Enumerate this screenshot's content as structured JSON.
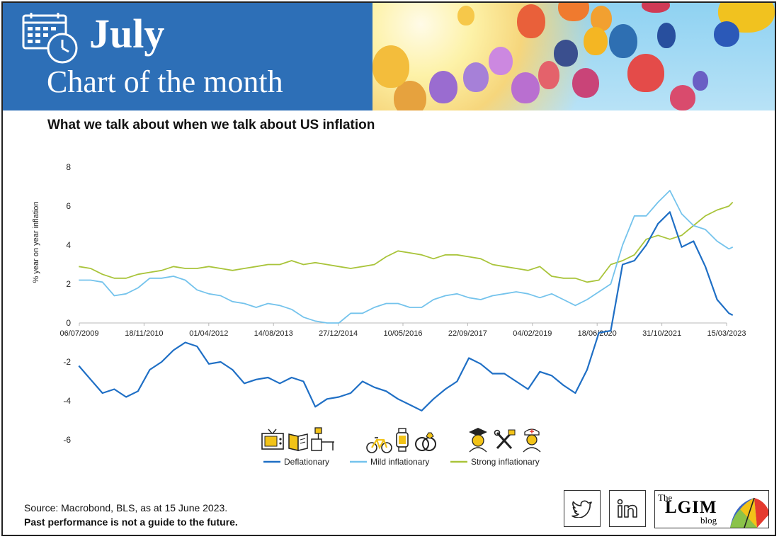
{
  "banner": {
    "month": "July",
    "subtitle": "Chart of the month"
  },
  "chart_title": "What we talk about when we talk about US inflation",
  "footer": {
    "source": "Source: Macrobond, BLS, as at 15 June 2023.",
    "disclaimer": "Past performance is not a guide to the future.",
    "blog_the": "The",
    "blog_name": "LGIM",
    "blog_word": "blog"
  },
  "social": [
    "twitter-icon",
    "linkedin-icon"
  ],
  "colors": {
    "banner": "#2d6fb7",
    "deflationary": "#1f6fc5",
    "mild": "#74c3ec",
    "strong": "#a9c43a",
    "icon_yellow": "#f2c318"
  },
  "chart_data": {
    "type": "line",
    "title": "What we talk about when we talk about US inflation",
    "ylabel": "% year on year inflation",
    "xlabel": "",
    "ylim": [
      -6,
      8
    ],
    "yticks": [
      -6,
      -4,
      -2,
      0,
      2,
      4,
      6,
      8
    ],
    "x_range": [
      "2009-07-06",
      "2023-03-15"
    ],
    "xtick_labels": [
      "06/07/2009",
      "18/11/2010",
      "01/04/2012",
      "14/08/2013",
      "27/12/2014",
      "10/05/2016",
      "22/09/2017",
      "04/02/2019",
      "18/06/2020",
      "31/10/2021",
      "15/03/2023"
    ],
    "grid": false,
    "legend_position": "bottom",
    "legend_icons": [
      [
        "tv-icon",
        "books-icon",
        "furniture-lamp-icon"
      ],
      [
        "bicycle-icon",
        "smartwatch-icon",
        "rings-icon"
      ],
      [
        "graduate-icon",
        "tools-icon",
        "nurse-icon"
      ]
    ],
    "series": [
      {
        "name": "Deflationary",
        "color": "#1f6fc5",
        "x": [
          2009.5,
          2009.75,
          2010.0,
          2010.25,
          2010.5,
          2010.75,
          2011.0,
          2011.25,
          2011.5,
          2011.75,
          2012.0,
          2012.25,
          2012.5,
          2012.75,
          2013.0,
          2013.25,
          2013.5,
          2013.75,
          2014.0,
          2014.25,
          2014.5,
          2014.75,
          2015.0,
          2015.25,
          2015.5,
          2015.75,
          2016.0,
          2016.25,
          2016.5,
          2016.75,
          2017.0,
          2017.25,
          2017.5,
          2017.75,
          2018.0,
          2018.25,
          2018.5,
          2018.75,
          2019.0,
          2019.25,
          2019.5,
          2019.75,
          2020.0,
          2020.25,
          2020.5,
          2020.75,
          2021.0,
          2021.25,
          2021.5,
          2021.75,
          2022.0,
          2022.25,
          2022.5,
          2022.75,
          2023.0,
          2023.25,
          2023.33
        ],
        "values": [
          -2.2,
          -2.9,
          -3.6,
          -3.4,
          -3.8,
          -3.5,
          -2.4,
          -2.0,
          -1.4,
          -1.0,
          -1.2,
          -2.1,
          -2.0,
          -2.4,
          -3.1,
          -2.9,
          -2.8,
          -3.1,
          -2.8,
          -3.0,
          -4.3,
          -3.9,
          -3.8,
          -3.6,
          -3.0,
          -3.3,
          -3.5,
          -3.9,
          -4.2,
          -4.5,
          -3.9,
          -3.4,
          -3.0,
          -1.8,
          -2.1,
          -2.6,
          -2.6,
          -3.0,
          -3.4,
          -2.5,
          -2.7,
          -3.2,
          -3.6,
          -2.4,
          -0.5,
          -0.4,
          3.0,
          3.2,
          4.0,
          5.1,
          5.7,
          3.9,
          4.2,
          2.9,
          1.2,
          0.5,
          0.4
        ]
      },
      {
        "name": "Mild inflationary",
        "color": "#74c3ec",
        "x": [
          2009.5,
          2009.75,
          2010.0,
          2010.25,
          2010.5,
          2010.75,
          2011.0,
          2011.25,
          2011.5,
          2011.75,
          2012.0,
          2012.25,
          2012.5,
          2012.75,
          2013.0,
          2013.25,
          2013.5,
          2013.75,
          2014.0,
          2014.25,
          2014.5,
          2014.75,
          2015.0,
          2015.25,
          2015.5,
          2015.75,
          2016.0,
          2016.25,
          2016.5,
          2016.75,
          2017.0,
          2017.25,
          2017.5,
          2017.75,
          2018.0,
          2018.25,
          2018.5,
          2018.75,
          2019.0,
          2019.25,
          2019.5,
          2019.75,
          2020.0,
          2020.25,
          2020.5,
          2020.75,
          2021.0,
          2021.25,
          2021.5,
          2021.75,
          2022.0,
          2022.25,
          2022.5,
          2022.75,
          2023.0,
          2023.25,
          2023.33
        ],
        "values": [
          2.2,
          2.2,
          2.1,
          1.4,
          1.5,
          1.8,
          2.3,
          2.3,
          2.4,
          2.2,
          1.7,
          1.5,
          1.4,
          1.1,
          1.0,
          0.8,
          1.0,
          0.9,
          0.7,
          0.3,
          0.1,
          0.0,
          0.0,
          0.5,
          0.5,
          0.8,
          1.0,
          1.0,
          0.8,
          0.8,
          1.2,
          1.4,
          1.5,
          1.3,
          1.2,
          1.4,
          1.5,
          1.6,
          1.5,
          1.3,
          1.5,
          1.2,
          0.9,
          1.2,
          1.6,
          2.0,
          4.0,
          5.5,
          5.5,
          6.2,
          6.8,
          5.6,
          5.0,
          4.8,
          4.2,
          3.8,
          3.9
        ]
      },
      {
        "name": "Strong inflationary",
        "color": "#a9c43a",
        "x": [
          2009.5,
          2009.75,
          2010.0,
          2010.25,
          2010.5,
          2010.75,
          2011.0,
          2011.25,
          2011.5,
          2011.75,
          2012.0,
          2012.25,
          2012.5,
          2012.75,
          2013.0,
          2013.25,
          2013.5,
          2013.75,
          2014.0,
          2014.25,
          2014.5,
          2014.75,
          2015.0,
          2015.25,
          2015.5,
          2015.75,
          2016.0,
          2016.25,
          2016.5,
          2016.75,
          2017.0,
          2017.25,
          2017.5,
          2017.75,
          2018.0,
          2018.25,
          2018.5,
          2018.75,
          2019.0,
          2019.25,
          2019.5,
          2019.75,
          2020.0,
          2020.25,
          2020.5,
          2020.75,
          2021.0,
          2021.25,
          2021.5,
          2021.75,
          2022.0,
          2022.25,
          2022.5,
          2022.75,
          2023.0,
          2023.25,
          2023.33
        ],
        "values": [
          2.9,
          2.8,
          2.5,
          2.3,
          2.3,
          2.5,
          2.6,
          2.7,
          2.9,
          2.8,
          2.8,
          2.9,
          2.8,
          2.7,
          2.8,
          2.9,
          3.0,
          3.0,
          3.2,
          3.0,
          3.1,
          3.0,
          2.9,
          2.8,
          2.9,
          3.0,
          3.4,
          3.7,
          3.6,
          3.5,
          3.3,
          3.5,
          3.5,
          3.4,
          3.3,
          3.0,
          2.9,
          2.8,
          2.7,
          2.9,
          2.4,
          2.3,
          2.3,
          2.1,
          2.2,
          3.0,
          3.2,
          3.5,
          4.3,
          4.5,
          4.3,
          4.5,
          5.0,
          5.5,
          5.8,
          6.0,
          6.2
        ]
      }
    ]
  }
}
